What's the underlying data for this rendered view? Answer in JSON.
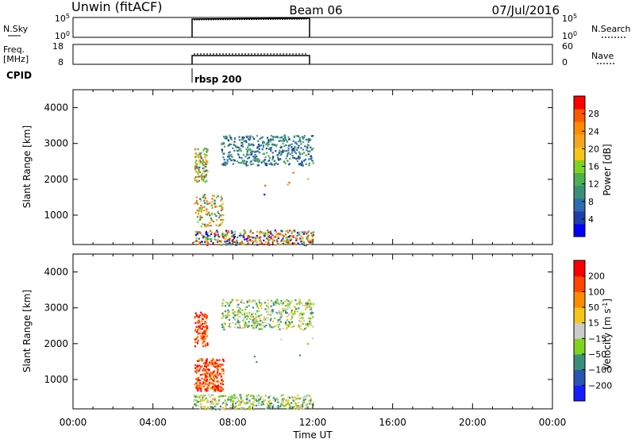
{
  "header": {
    "station": "Unwin (fitACF)",
    "beam": "Beam 06",
    "date": "07/Jul/2016"
  },
  "nsky_panel": {
    "left_label": "N.Sky",
    "left_tick_top": "10^5",
    "left_tick_bottom": "10^0",
    "right_tick_top": "10^5",
    "right_tick_bottom": "10^0",
    "right_legend": "N.Search"
  },
  "freq_panel": {
    "left_label_line1": "Freq.",
    "left_label_line2": "[MHz]",
    "left_tick_top": "18",
    "left_tick_bottom": "8",
    "right_tick_top": "60",
    "right_tick_bottom": "0",
    "right_legend": "Nave"
  },
  "cpid": {
    "label": "CPID",
    "value": "rbsp 200"
  },
  "chart_data": [
    {
      "type": "heatmap",
      "ylabel": "Slant Range [km]",
      "yticks": [
        1000,
        2000,
        3000,
        4000
      ],
      "ylim": [
        180,
        4500
      ],
      "xlim_hours": [
        0,
        24
      ],
      "active_window_hours": [
        6,
        12
      ],
      "colorbar": {
        "label": "Power [dB]",
        "ticks": [
          "28",
          "24",
          "20",
          "16",
          "12",
          "8",
          "4"
        ],
        "colors": [
          "#0000ff",
          "#1f3fa8",
          "#2e6bb0",
          "#3a8f7a",
          "#4caf50",
          "#7ed321",
          "#f5c518",
          "#f5a623",
          "#ff8c00",
          "#ff5a00",
          "#ff0000"
        ]
      }
    },
    {
      "type": "heatmap",
      "ylabel": "Slant Range [km]",
      "yticks": [
        1000,
        2000,
        3000,
        4000
      ],
      "ylim": [
        180,
        4500
      ],
      "xlim_hours": [
        0,
        24
      ],
      "active_window_hours": [
        6,
        12
      ],
      "colorbar": {
        "label": "Velocity [m s^-1]",
        "ticks": [
          "200",
          "100",
          "50",
          "15",
          "-15",
          "-50",
          "-100",
          "-200"
        ],
        "colors": [
          "#1a1aff",
          "#2a55b0",
          "#3a8f7a",
          "#7ed321",
          "#cccccc",
          "#f5c518",
          "#ff8c00",
          "#ff4500",
          "#ff0000"
        ]
      }
    }
  ],
  "x_axis": {
    "ticks": [
      "00:00",
      "04:00",
      "08:00",
      "12:00",
      "16:00",
      "20:00",
      "00:00"
    ],
    "label": "Time UT"
  }
}
